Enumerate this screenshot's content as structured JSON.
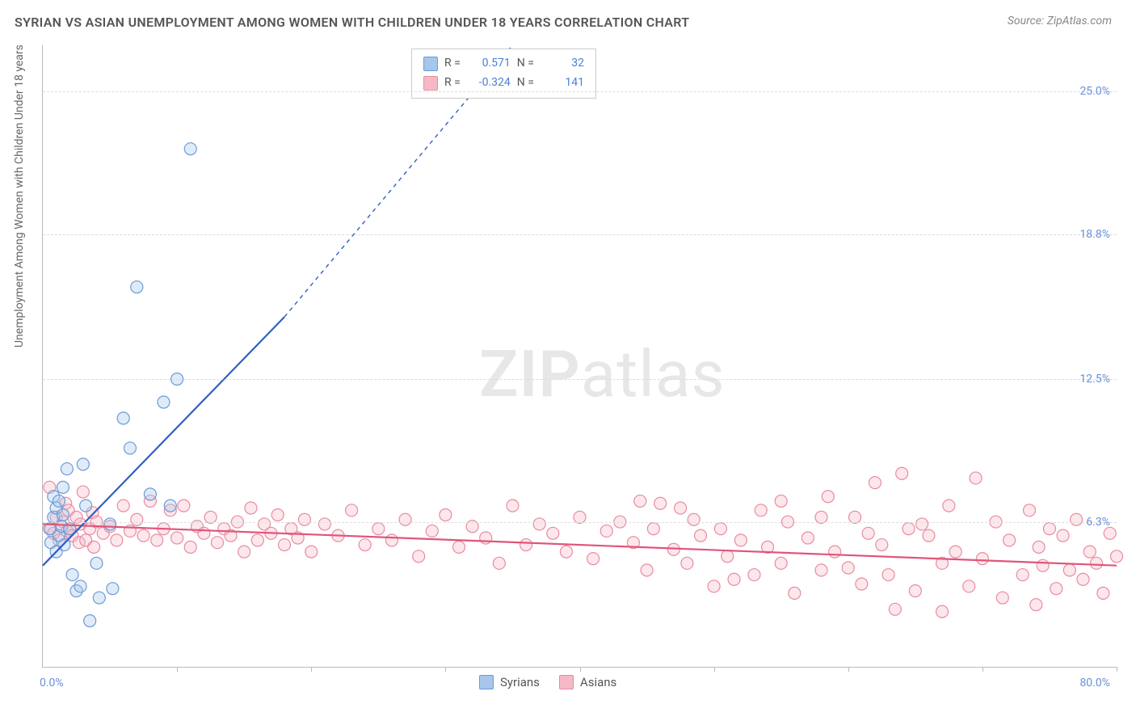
{
  "title": "SYRIAN VS ASIAN UNEMPLOYMENT AMONG WOMEN WITH CHILDREN UNDER 18 YEARS CORRELATION CHART",
  "source_text": "Source: ZipAtlas.com",
  "y_axis_label": "Unemployment Among Women with Children Under 18 years",
  "watermark_bold": "ZIP",
  "watermark_light": "atlas",
  "chart": {
    "type": "scatter",
    "background_color": "#ffffff",
    "grid_color": "#dddddd",
    "axis_color": "#bbbbbb",
    "tick_label_color": "#6a8fd8",
    "xlim": [
      0,
      80
    ],
    "ylim": [
      0,
      27
    ],
    "x_ticks": [
      0,
      10,
      20,
      30,
      40,
      50,
      60,
      70,
      80
    ],
    "x_min_label": "0.0%",
    "x_max_label": "80.0%",
    "y_gridlines": [
      {
        "value": 6.3,
        "label": "6.3%"
      },
      {
        "value": 12.5,
        "label": "12.5%"
      },
      {
        "value": 18.8,
        "label": "18.8%"
      },
      {
        "value": 25.0,
        "label": "25.0%"
      }
    ],
    "marker_radius": 7.5,
    "marker_stroke_width": 1.2,
    "marker_fill_opacity": 0.35,
    "series": [
      {
        "name": "Syrians",
        "color_fill": "#a6c6ec",
        "color_stroke": "#6a9bd8",
        "trend_color": "#3060c0",
        "trend_width_solid": 2.2,
        "trend_width_dash": 1.4,
        "trend": {
          "x1": 0,
          "y1": 4.4,
          "x2_solid": 18,
          "y2_solid": 15.2,
          "x2_dash": 35,
          "y2_dash": 27
        },
        "stats": {
          "R_label": "R =",
          "R_value": "0.571",
          "N_label": "N =",
          "N_value": "32"
        },
        "points": [
          [
            0.5,
            6.0
          ],
          [
            0.6,
            5.4
          ],
          [
            0.8,
            6.5
          ],
          [
            0.8,
            7.4
          ],
          [
            1.0,
            5.0
          ],
          [
            1.0,
            6.9
          ],
          [
            1.2,
            7.2
          ],
          [
            1.2,
            5.7
          ],
          [
            1.4,
            6.1
          ],
          [
            1.5,
            6.6
          ],
          [
            1.5,
            7.8
          ],
          [
            1.6,
            5.3
          ],
          [
            1.8,
            8.6
          ],
          [
            2.0,
            6.0
          ],
          [
            2.2,
            4.0
          ],
          [
            2.5,
            3.3
          ],
          [
            2.8,
            3.5
          ],
          [
            3.0,
            8.8
          ],
          [
            3.2,
            7.0
          ],
          [
            3.5,
            2.0
          ],
          [
            4.0,
            4.5
          ],
          [
            4.2,
            3.0
          ],
          [
            5.0,
            6.2
          ],
          [
            5.2,
            3.4
          ],
          [
            6.0,
            10.8
          ],
          [
            6.5,
            9.5
          ],
          [
            7.0,
            16.5
          ],
          [
            8.0,
            7.5
          ],
          [
            9.0,
            11.5
          ],
          [
            9.5,
            7.0
          ],
          [
            10.0,
            12.5
          ],
          [
            11.0,
            22.5
          ]
        ]
      },
      {
        "name": "Asians",
        "color_fill": "#f5b9c6",
        "color_stroke": "#e88ba2",
        "trend_color": "#e0557a",
        "trend_width_solid": 2.2,
        "trend": {
          "x1": 0,
          "y1": 6.2,
          "x2_solid": 80,
          "y2_solid": 4.4
        },
        "stats": {
          "R_label": "R =",
          "R_value": "-0.324",
          "N_label": "N =",
          "N_value": "141"
        },
        "points": [
          [
            0.5,
            7.8
          ],
          [
            0.6,
            6.0
          ],
          [
            0.8,
            5.8
          ],
          [
            1.0,
            6.5
          ],
          [
            1.2,
            5.5
          ],
          [
            1.5,
            6.3
          ],
          [
            1.7,
            7.1
          ],
          [
            1.8,
            5.9
          ],
          [
            1.9,
            6.8
          ],
          [
            2.0,
            6.0
          ],
          [
            2.2,
            5.7
          ],
          [
            2.5,
            6.5
          ],
          [
            2.7,
            5.4
          ],
          [
            2.8,
            6.2
          ],
          [
            3.0,
            7.6
          ],
          [
            3.2,
            5.5
          ],
          [
            3.5,
            6.0
          ],
          [
            3.7,
            6.7
          ],
          [
            3.8,
            5.2
          ],
          [
            4.0,
            6.3
          ],
          [
            4.5,
            5.8
          ],
          [
            5.0,
            6.1
          ],
          [
            5.5,
            5.5
          ],
          [
            6.0,
            7.0
          ],
          [
            6.5,
            5.9
          ],
          [
            7.0,
            6.4
          ],
          [
            7.5,
            5.7
          ],
          [
            8.0,
            7.2
          ],
          [
            8.5,
            5.5
          ],
          [
            9.0,
            6.0
          ],
          [
            9.5,
            6.8
          ],
          [
            10.0,
            5.6
          ],
          [
            10.5,
            7.0
          ],
          [
            11.0,
            5.2
          ],
          [
            11.5,
            6.1
          ],
          [
            12.0,
            5.8
          ],
          [
            12.5,
            6.5
          ],
          [
            13.0,
            5.4
          ],
          [
            13.5,
            6.0
          ],
          [
            14.0,
            5.7
          ],
          [
            14.5,
            6.3
          ],
          [
            15.0,
            5.0
          ],
          [
            15.5,
            6.9
          ],
          [
            16.0,
            5.5
          ],
          [
            16.5,
            6.2
          ],
          [
            17.0,
            5.8
          ],
          [
            17.5,
            6.6
          ],
          [
            18.0,
            5.3
          ],
          [
            18.5,
            6.0
          ],
          [
            19.0,
            5.6
          ],
          [
            19.5,
            6.4
          ],
          [
            20.0,
            5.0
          ],
          [
            21.0,
            6.2
          ],
          [
            22.0,
            5.7
          ],
          [
            23.0,
            6.8
          ],
          [
            24.0,
            5.3
          ],
          [
            25.0,
            6.0
          ],
          [
            26.0,
            5.5
          ],
          [
            27.0,
            6.4
          ],
          [
            28.0,
            4.8
          ],
          [
            29.0,
            5.9
          ],
          [
            30.0,
            6.6
          ],
          [
            31.0,
            5.2
          ],
          [
            32.0,
            6.1
          ],
          [
            33.0,
            5.6
          ],
          [
            34.0,
            4.5
          ],
          [
            35.0,
            7.0
          ],
          [
            36.0,
            5.3
          ],
          [
            37.0,
            6.2
          ],
          [
            38.0,
            5.8
          ],
          [
            39.0,
            5.0
          ],
          [
            40.0,
            6.5
          ],
          [
            41.0,
            4.7
          ],
          [
            42.0,
            5.9
          ],
          [
            43.0,
            6.3
          ],
          [
            44.0,
            5.4
          ],
          [
            45.0,
            4.2
          ],
          [
            45.5,
            6.0
          ],
          [
            46.0,
            7.1
          ],
          [
            47.0,
            5.1
          ],
          [
            48.0,
            4.5
          ],
          [
            48.5,
            6.4
          ],
          [
            49.0,
            5.7
          ],
          [
            50.0,
            3.5
          ],
          [
            50.5,
            6.0
          ],
          [
            51.0,
            4.8
          ],
          [
            52.0,
            5.5
          ],
          [
            53.0,
            4.0
          ],
          [
            53.5,
            6.8
          ],
          [
            54.0,
            5.2
          ],
          [
            55.0,
            4.5
          ],
          [
            55.5,
            6.3
          ],
          [
            56.0,
            3.2
          ],
          [
            57.0,
            5.6
          ],
          [
            58.0,
            4.2
          ],
          [
            58.5,
            7.4
          ],
          [
            59.0,
            5.0
          ],
          [
            60.0,
            4.3
          ],
          [
            60.5,
            6.5
          ],
          [
            61.0,
            3.6
          ],
          [
            62.0,
            8.0
          ],
          [
            62.5,
            5.3
          ],
          [
            63.0,
            4.0
          ],
          [
            64.0,
            8.4
          ],
          [
            64.5,
            6.0
          ],
          [
            65.0,
            3.3
          ],
          [
            66.0,
            5.7
          ],
          [
            67.0,
            4.5
          ],
          [
            67.5,
            7.0
          ],
          [
            68.0,
            5.0
          ],
          [
            69.0,
            3.5
          ],
          [
            69.5,
            8.2
          ],
          [
            70.0,
            4.7
          ],
          [
            71.0,
            6.3
          ],
          [
            71.5,
            3.0
          ],
          [
            72.0,
            5.5
          ],
          [
            73.0,
            4.0
          ],
          [
            73.5,
            6.8
          ],
          [
            74.0,
            2.7
          ],
          [
            74.2,
            5.2
          ],
          [
            74.5,
            4.4
          ],
          [
            75.0,
            6.0
          ],
          [
            75.5,
            3.4
          ],
          [
            76.0,
            5.7
          ],
          [
            76.5,
            4.2
          ],
          [
            77.0,
            6.4
          ],
          [
            77.5,
            3.8
          ],
          [
            78.0,
            5.0
          ],
          [
            78.5,
            4.5
          ],
          [
            79.0,
            3.2
          ],
          [
            79.5,
            5.8
          ],
          [
            80.0,
            4.8
          ],
          [
            63.5,
            2.5
          ],
          [
            67.0,
            2.4
          ],
          [
            44.5,
            7.2
          ],
          [
            47.5,
            6.9
          ],
          [
            51.5,
            3.8
          ],
          [
            55.0,
            7.2
          ],
          [
            58.0,
            6.5
          ],
          [
            61.5,
            5.8
          ],
          [
            65.5,
            6.2
          ]
        ]
      }
    ]
  }
}
